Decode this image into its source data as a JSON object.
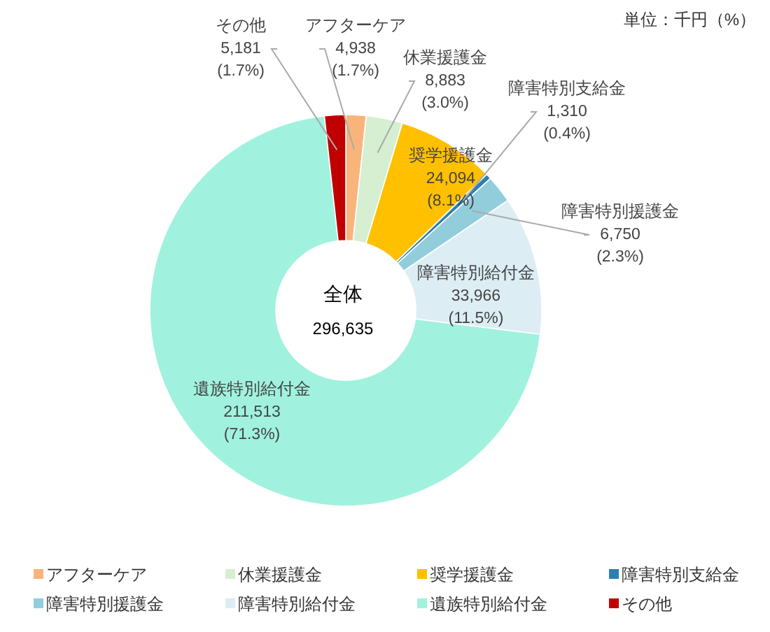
{
  "chart_data": {
    "type": "donut",
    "categories": [
      "アフターケア",
      "休業援護金",
      "奨学援護金",
      "障害特別支給金",
      "障害特別援護金",
      "障害特別給付金",
      "遺族特別給付金",
      "その他"
    ],
    "values": [
      4938,
      8883,
      24094,
      1310,
      6750,
      33966,
      211513,
      5181
    ],
    "colors": [
      "#f9b47c",
      "#d5efd0",
      "#ffc000",
      "#2e7fb0",
      "#92cddc",
      "#dcedf4",
      "#a0f2de",
      "#c00000"
    ],
    "value_labels": [
      "4,938\n(1.7%)",
      "8,883\n(3.0%)",
      "24,094\n(8.1%)",
      "1,310\n(0.4%)",
      "6,750\n(2.3%)",
      "33,966\n(11.5%)",
      "211,513\n(71.3%)",
      "5,181\n(1.7%)"
    ],
    "annotations": [
      "単位：千円（%）",
      "全体",
      "296,635"
    ],
    "legend": "bottom"
  }
}
